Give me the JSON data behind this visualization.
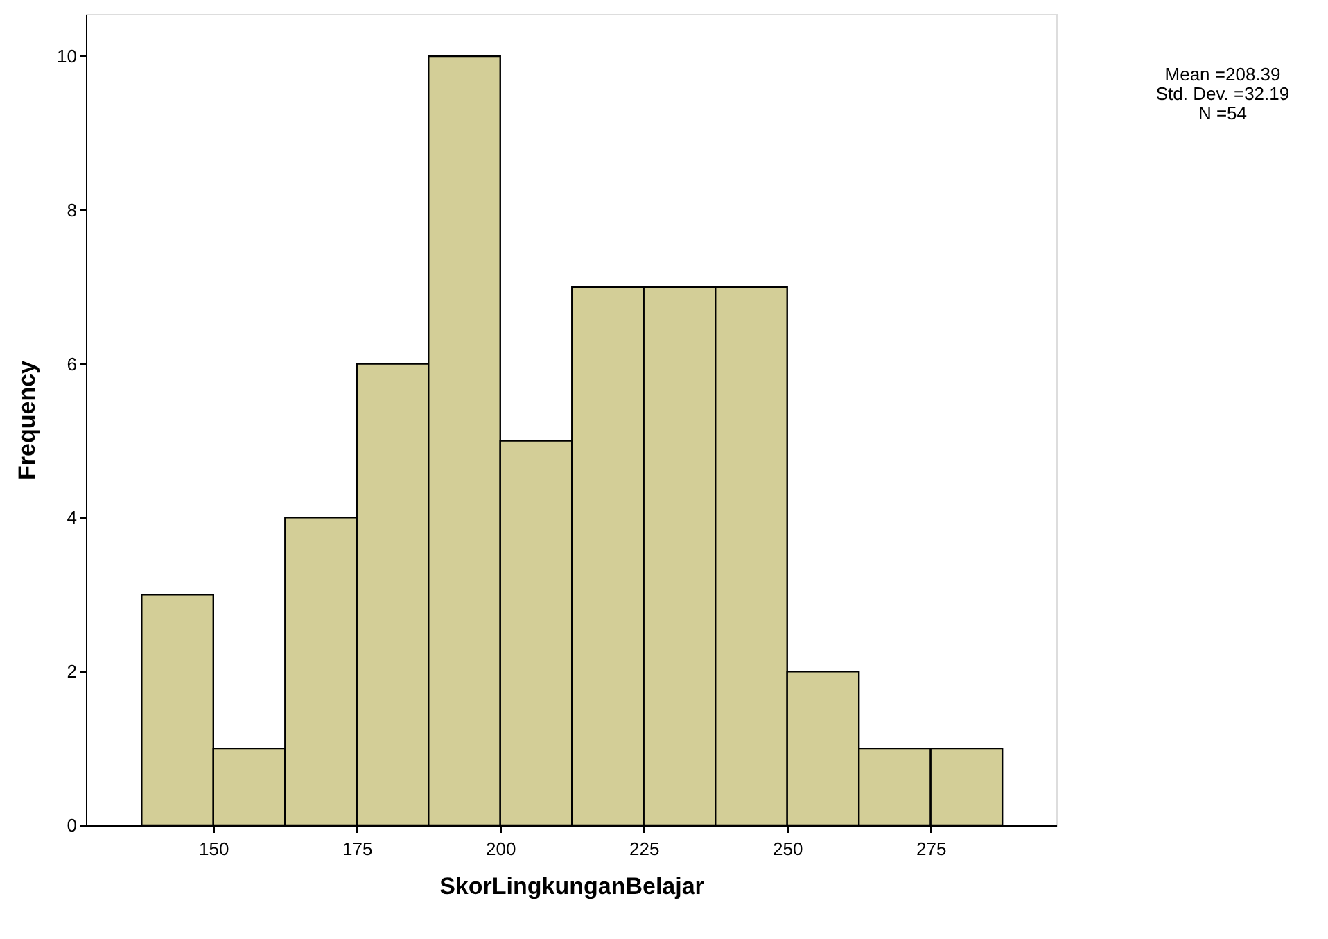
{
  "chart_data": {
    "type": "histogram",
    "xlabel": "SkorLingkunganBelajar",
    "ylabel": "Frequency",
    "bins": [
      137.5,
      150,
      162.5,
      175,
      187.5,
      200,
      212.5,
      225,
      237.5,
      250,
      262.5,
      275,
      287.5
    ],
    "values": [
      3,
      1,
      4,
      6,
      10,
      5,
      7,
      7,
      7,
      2,
      1,
      1
    ],
    "color": "#d3ce97",
    "xlim": [
      127.8,
      296.9
    ],
    "xticks": [
      150,
      175,
      200,
      225,
      250,
      275
    ],
    "ylim": [
      0,
      10.55
    ],
    "yticks": [
      0,
      2,
      4,
      6,
      8,
      10
    ],
    "grid": false,
    "annotations": [
      "Mean =208.39",
      "Std. Dev. =32.19",
      "N =54"
    ]
  }
}
